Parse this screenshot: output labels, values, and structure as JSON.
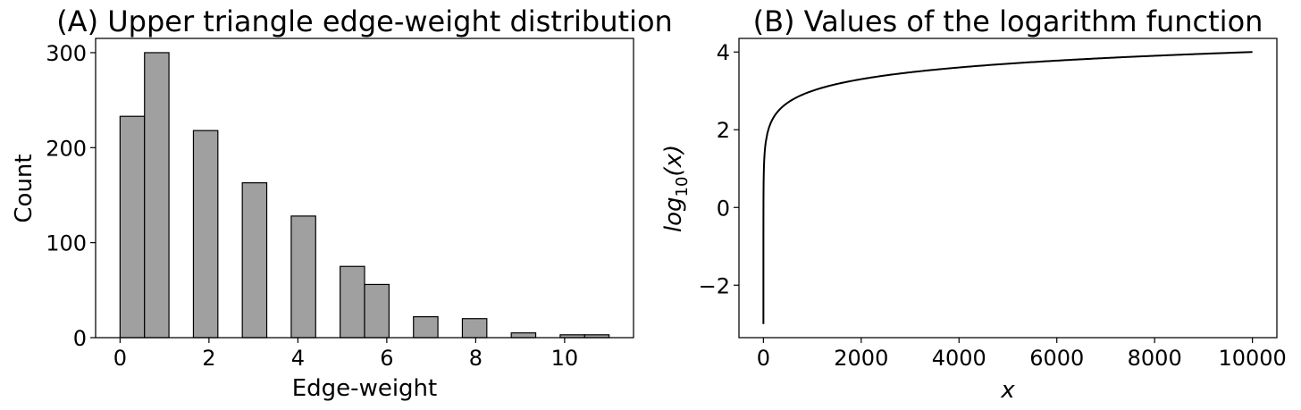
{
  "chart_data": [
    {
      "type": "bar",
      "title": "(A) Upper triangle edge-weight distribution",
      "xlabel": "Edge-weight",
      "ylabel": "Count",
      "xlim": [
        -0.55,
        11.55
      ],
      "ylim": [
        0,
        315
      ],
      "xticks": [
        0,
        2,
        4,
        6,
        8,
        10
      ],
      "yticks": [
        0,
        100,
        200,
        300
      ],
      "bin_width": 0.55,
      "bins": [
        {
          "x0": 0.0,
          "x1": 0.55,
          "count": 233
        },
        {
          "x0": 0.55,
          "x1": 1.1,
          "count": 300
        },
        {
          "x0": 1.65,
          "x1": 2.2,
          "count": 218
        },
        {
          "x0": 2.75,
          "x1": 3.3,
          "count": 163
        },
        {
          "x0": 3.85,
          "x1": 4.4,
          "count": 128
        },
        {
          "x0": 4.95,
          "x1": 5.5,
          "count": 75
        },
        {
          "x0": 5.5,
          "x1": 6.05,
          "count": 56
        },
        {
          "x0": 6.6,
          "x1": 7.15,
          "count": 22
        },
        {
          "x0": 7.7,
          "x1": 8.25,
          "count": 20
        },
        {
          "x0": 8.8,
          "x1": 9.35,
          "count": 5
        },
        {
          "x0": 9.9,
          "x1": 10.45,
          "count": 3
        },
        {
          "x0": 10.45,
          "x1": 11.0,
          "count": 3
        }
      ],
      "bar_color": "#a0a0a0",
      "edge_color": "#000000",
      "grid": false
    },
    {
      "type": "line",
      "title": "(B) Values of the logarithm function",
      "xlabel": "x",
      "ylabel_main": "log",
      "ylabel_sub": "10",
      "ylabel_arg": "(x)",
      "function": "log10",
      "x_range": [
        0.001,
        10000
      ],
      "xlim": [
        -500,
        10500
      ],
      "ylim": [
        -3.35,
        4.35
      ],
      "xticks": [
        0,
        2000,
        4000,
        6000,
        8000,
        10000
      ],
      "yticks": [
        {
          "value": 4,
          "label": "4"
        },
        {
          "value": 2,
          "label": "2"
        },
        {
          "value": 0,
          "label": "0"
        },
        {
          "value": -2,
          "label": "−2"
        }
      ],
      "line_color": "#000000",
      "grid": false
    }
  ]
}
